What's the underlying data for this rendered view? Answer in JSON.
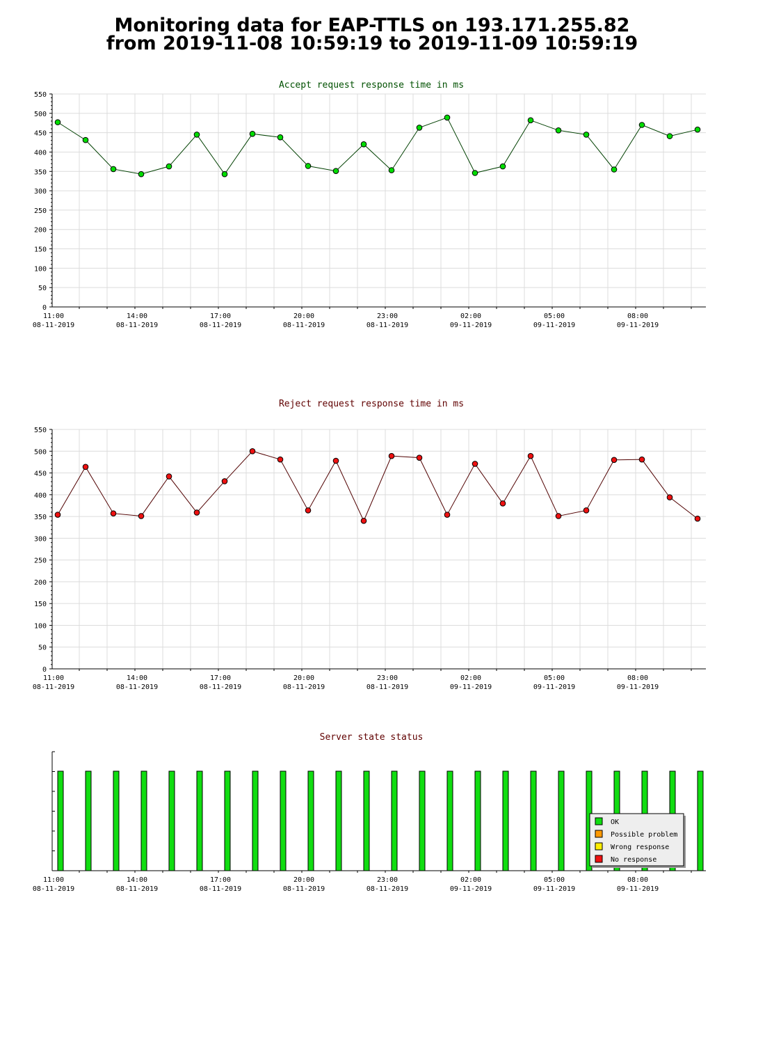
{
  "page": {
    "title_line1": "Monitoring data for EAP-TTLS on 193.171.255.82",
    "title_line2": "from 2019-11-08 10:59:19 to 2019-11-09 10:59:19"
  },
  "time_axis": {
    "labels": [
      {
        "time": "11:00",
        "date": "08-11-2019",
        "hour": 0
      },
      {
        "time": "14:00",
        "date": "08-11-2019",
        "hour": 3
      },
      {
        "time": "17:00",
        "date": "08-11-2019",
        "hour": 6
      },
      {
        "time": "20:00",
        "date": "08-11-2019",
        "hour": 9
      },
      {
        "time": "23:00",
        "date": "08-11-2019",
        "hour": 12
      },
      {
        "time": "02:00",
        "date": "09-11-2019",
        "hour": 15
      },
      {
        "time": "05:00",
        "date": "09-11-2019",
        "hour": 18
      },
      {
        "time": "08:00",
        "date": "09-11-2019",
        "hour": 21
      }
    ]
  },
  "chart_data": [
    {
      "type": "line",
      "title": "Accept request response time in ms",
      "title_color": "#005000",
      "ylim": [
        0,
        550
      ],
      "yticks": [
        0,
        50,
        100,
        150,
        200,
        250,
        300,
        350,
        400,
        450,
        500,
        550
      ],
      "grid": true,
      "series": [
        {
          "marker_color": "#00dd00",
          "line_color": "#004000",
          "values": [
            477,
            431,
            356,
            343,
            363,
            445,
            343,
            447,
            438,
            364,
            351,
            420,
            353,
            463,
            489,
            346,
            363,
            482,
            456,
            445,
            355,
            470,
            441,
            458
          ]
        }
      ]
    },
    {
      "type": "line",
      "title": "Reject request response time in ms",
      "title_color": "#600000",
      "ylim": [
        0,
        550
      ],
      "yticks": [
        0,
        50,
        100,
        150,
        200,
        250,
        300,
        350,
        400,
        450,
        500,
        550
      ],
      "grid": true,
      "series": [
        {
          "marker_color": "#ee1111",
          "line_color": "#500000",
          "values": [
            354,
            464,
            357,
            351,
            442,
            359,
            431,
            500,
            481,
            364,
            478,
            340,
            489,
            485,
            354,
            471,
            380,
            489,
            351,
            364,
            480,
            481,
            394,
            345
          ]
        }
      ]
    },
    {
      "type": "bar",
      "title": "Server state status",
      "title_color": "#600000",
      "grid": false,
      "legend_position": "bottom-right",
      "legend": [
        {
          "label": "OK",
          "color": "#11dd11"
        },
        {
          "label": "Possible problem",
          "color": "#ff9900"
        },
        {
          "label": "Wrong response",
          "color": "#ffee00"
        },
        {
          "label": "No response",
          "color": "#ee1111"
        }
      ],
      "bar_color": "#11dd11",
      "values": [
        1,
        1,
        1,
        1,
        1,
        1,
        1,
        1,
        1,
        1,
        1,
        1,
        1,
        1,
        1,
        1,
        1,
        1,
        1,
        1,
        1,
        1,
        1,
        1
      ]
    }
  ]
}
